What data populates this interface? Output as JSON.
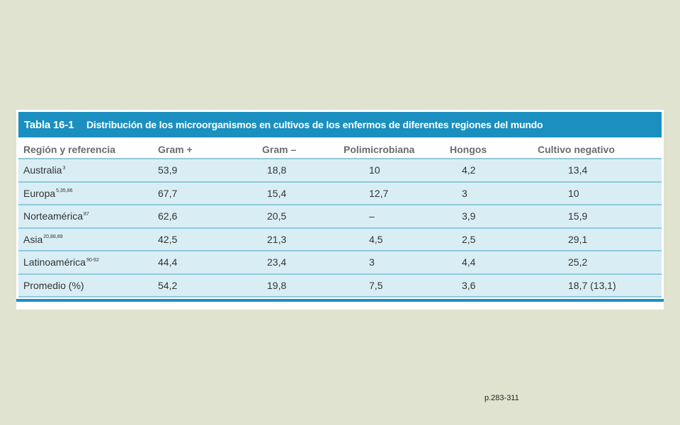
{
  "table": {
    "label": "Tabla 16-1",
    "title": "Distribución de los microorganismos en cultivos de los enfermos de diferentes regiones del mundo",
    "headers": [
      "Región y referencia",
      "Gram +",
      "Gram –",
      "Polimicrobiana",
      "Hongos",
      "Cultivo negativo"
    ],
    "rows": [
      {
        "region": "Australia",
        "ref": "3",
        "gram_pos": "53,9",
        "gram_neg": "18,8",
        "polimicrobiana": "10",
        "hongos": "4,2",
        "cultivo_negativo": "13,4"
      },
      {
        "region": "Europa",
        "ref": "5,35,86",
        "gram_pos": "67,7",
        "gram_neg": "15,4",
        "polimicrobiana": "12,7",
        "hongos": "3",
        "cultivo_negativo": "10"
      },
      {
        "region": "Norteamérica",
        "ref": "87",
        "gram_pos": "62,6",
        "gram_neg": "20,5",
        "polimicrobiana": "–",
        "hongos": "3,9",
        "cultivo_negativo": "15,9"
      },
      {
        "region": "Asia",
        "ref": "20,88,89",
        "gram_pos": "42,5",
        "gram_neg": "21,3",
        "polimicrobiana": "4,5",
        "hongos": "2,5",
        "cultivo_negativo": "29,1"
      },
      {
        "region": "Latinoamérica",
        "ref": "90-92",
        "gram_pos": "44,4",
        "gram_neg": "23,4",
        "polimicrobiana": "3",
        "hongos": "4,4",
        "cultivo_negativo": "25,2"
      },
      {
        "region": "Promedio (%)",
        "ref": "",
        "gram_pos": "54,2",
        "gram_neg": "19,8",
        "polimicrobiana": "7,5",
        "hongos": "3,6",
        "cultivo_negativo": "18,7 (13,1)"
      }
    ]
  },
  "page_ref": "p.283-311",
  "colors": {
    "background": "#dfe3cf",
    "title_bar": "#1a8fc0",
    "row_fill": "#d9eef4",
    "row_rule": "#8fc8dd"
  }
}
